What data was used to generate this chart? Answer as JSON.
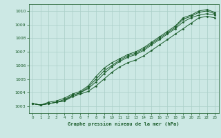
{
  "xlabel": "Graphe pression niveau de la mer (hPa)",
  "ylim": [
    1002.5,
    1010.5
  ],
  "xlim": [
    -0.5,
    23.5
  ],
  "yticks": [
    1003,
    1004,
    1005,
    1006,
    1007,
    1008,
    1009,
    1010
  ],
  "xticks": [
    0,
    1,
    2,
    3,
    4,
    5,
    6,
    7,
    8,
    9,
    10,
    11,
    12,
    13,
    14,
    15,
    16,
    17,
    18,
    19,
    20,
    21,
    22,
    23
  ],
  "bg_color": "#cce8e4",
  "grid_color": "#aacfc8",
  "line_color": "#1a5c2a",
  "marker": "D",
  "marker_size": 1.5,
  "linewidth": 0.7,
  "lines": [
    [
      1003.2,
      1003.1,
      1003.2,
      1003.3,
      1003.4,
      1003.7,
      1003.9,
      1004.1,
      1004.5,
      1005.0,
      1005.5,
      1005.9,
      1006.2,
      1006.4,
      1006.7,
      1007.1,
      1007.5,
      1007.9,
      1008.3,
      1008.7,
      1009.1,
      1009.5,
      1009.6,
      1009.5
    ],
    [
      1003.2,
      1003.1,
      1003.2,
      1003.3,
      1003.4,
      1003.8,
      1004.0,
      1004.3,
      1004.8,
      1005.4,
      1005.9,
      1006.3,
      1006.6,
      1006.8,
      1007.1,
      1007.5,
      1007.9,
      1008.3,
      1008.7,
      1009.2,
      1009.5,
      1009.7,
      1009.8,
      1009.7
    ],
    [
      1003.2,
      1003.1,
      1003.2,
      1003.3,
      1003.5,
      1003.8,
      1004.0,
      1004.4,
      1005.0,
      1005.6,
      1006.0,
      1006.4,
      1006.7,
      1006.9,
      1007.2,
      1007.6,
      1008.0,
      1008.4,
      1008.8,
      1009.4,
      1009.6,
      1009.9,
      1010.0,
      1009.8
    ],
    [
      1003.2,
      1003.1,
      1003.3,
      1003.4,
      1003.6,
      1003.9,
      1004.1,
      1004.5,
      1005.2,
      1005.8,
      1006.2,
      1006.5,
      1006.8,
      1007.0,
      1007.3,
      1007.7,
      1008.1,
      1008.5,
      1008.9,
      1009.5,
      1009.7,
      1010.0,
      1010.1,
      1009.9
    ]
  ]
}
